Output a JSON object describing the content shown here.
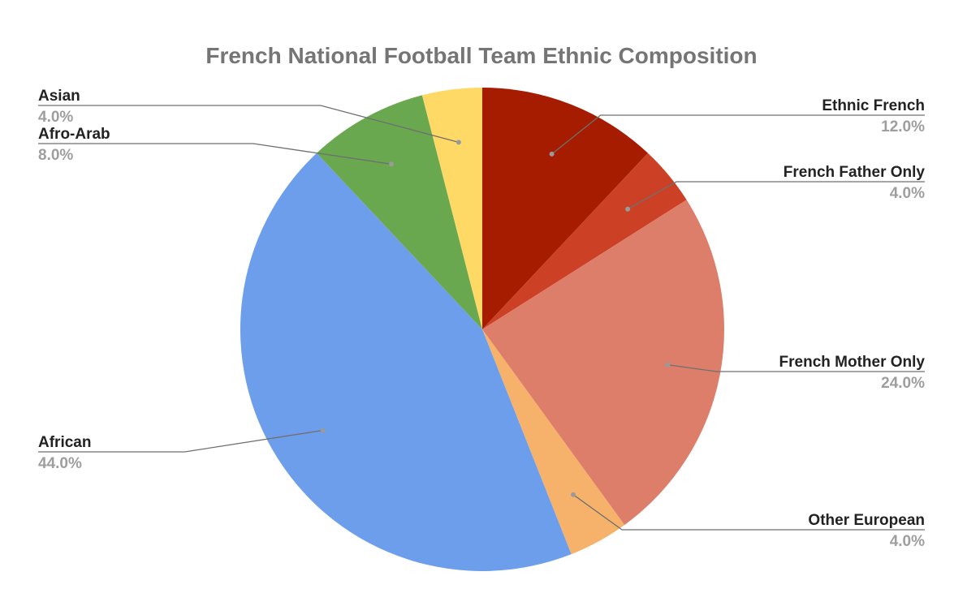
{
  "chart_data": {
    "type": "pie",
    "title": "French National Football Team Ethnic Composition",
    "slices": [
      {
        "label": "Ethnic French",
        "value": 12.0,
        "display": "12.0%",
        "color": "#a61c00",
        "side": "right"
      },
      {
        "label": "French Father Only",
        "value": 4.0,
        "display": "4.0%",
        "color": "#cc4125",
        "side": "right"
      },
      {
        "label": "French Mother Only",
        "value": 24.0,
        "display": "24.0%",
        "color": "#dd7e6b",
        "side": "right"
      },
      {
        "label": "Other European",
        "value": 4.0,
        "display": "4.0%",
        "color": "#f6b26b",
        "side": "right"
      },
      {
        "label": "African",
        "value": 44.0,
        "display": "44.0%",
        "color": "#6d9eeb",
        "side": "left"
      },
      {
        "label": "Afro-Arab",
        "value": 8.0,
        "display": "8.0%",
        "color": "#6aa84f",
        "side": "left"
      },
      {
        "label": "Asian",
        "value": 4.0,
        "display": "4.0%",
        "color": "#ffd966",
        "side": "left"
      }
    ]
  }
}
